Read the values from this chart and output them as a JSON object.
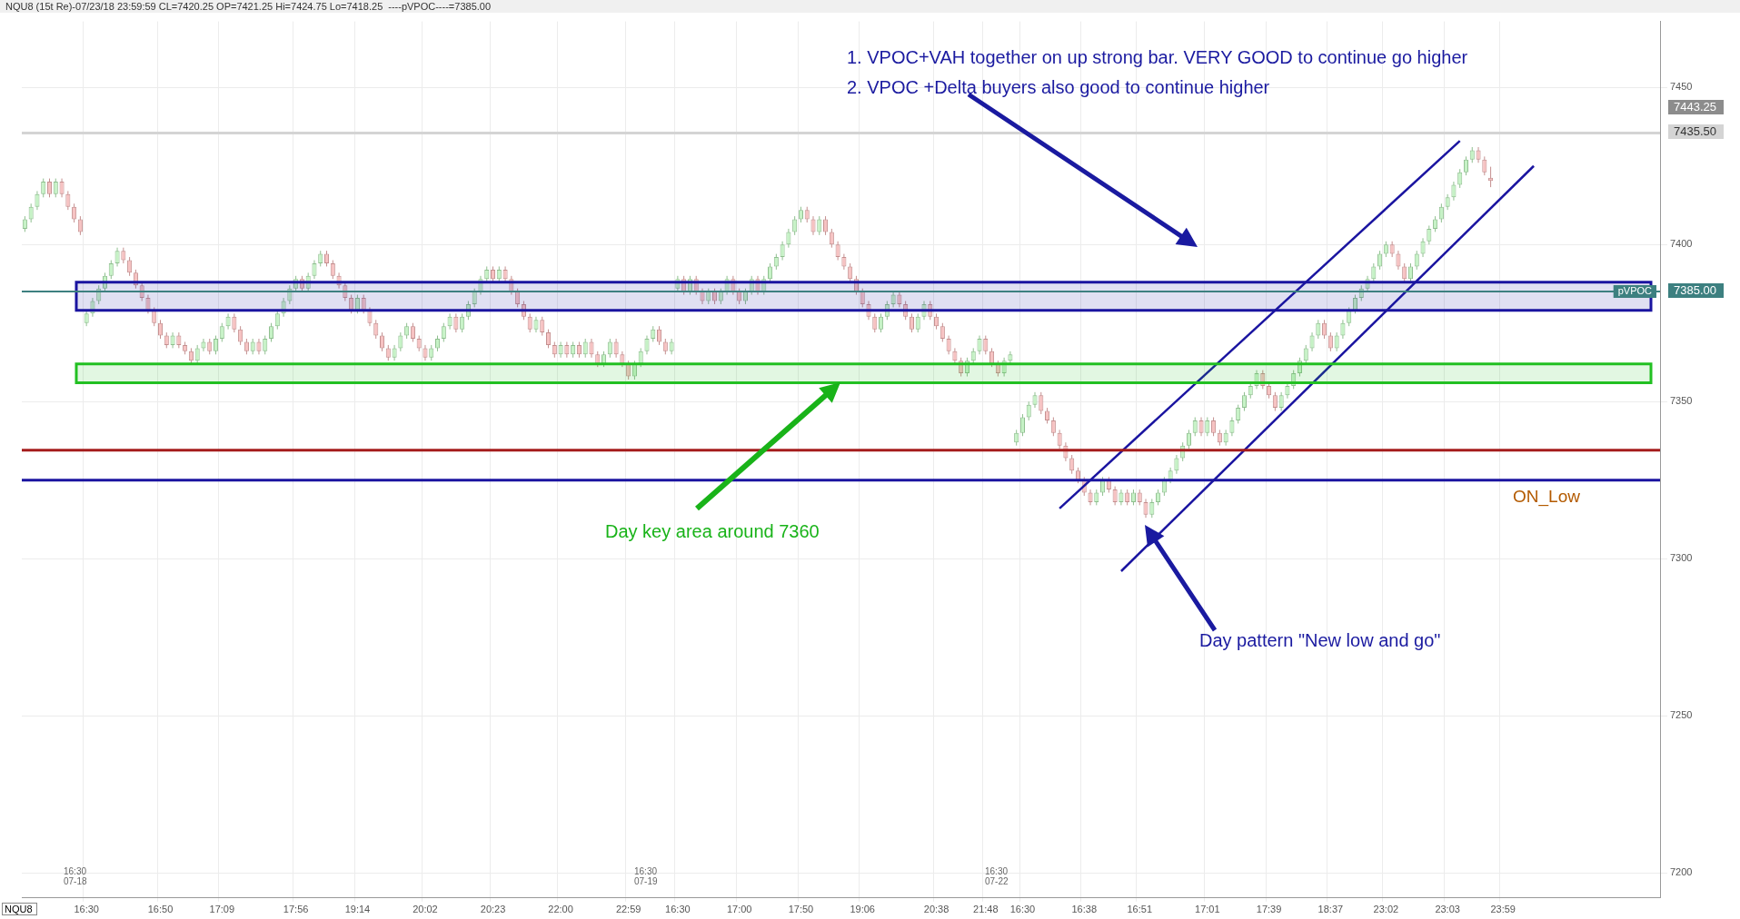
{
  "chart_data": {
    "type": "candlestick",
    "title": "NQU8 (15t Re)-07/23/18 23:59:59 CL=7420.25 OP=7421.25 Hi=7424.75 Lo=7418.25",
    "subtitle": "----pVPOC----=7385.00",
    "categories": [
      null,
      null,
      null,
      null,
      null,
      null,
      null,
      null,
      null,
      null,
      "16:30",
      null,
      null,
      null,
      null,
      null,
      null,
      null,
      null,
      null,
      null,
      null,
      "16:50",
      null,
      null,
      null,
      null,
      null,
      null,
      null,
      null,
      null,
      "17:09",
      null,
      null,
      null,
      null,
      null,
      null,
      null,
      null,
      null,
      null,
      null,
      "17:56",
      null,
      null,
      null,
      null,
      null,
      null,
      null,
      null,
      null,
      "19:14",
      null,
      null,
      null,
      null,
      null,
      null,
      null,
      null,
      null,
      null,
      "20:02",
      null,
      null,
      null,
      null,
      null,
      null,
      null,
      null,
      null,
      null,
      "20:23",
      null,
      null,
      null,
      null,
      null,
      null,
      null,
      null,
      null,
      null,
      "22:00",
      null,
      null,
      null,
      null,
      null,
      null,
      null,
      null,
      null,
      null,
      "22:59",
      null,
      null,
      null,
      null,
      null,
      null,
      null,
      "16:30",
      null,
      null,
      null,
      null,
      null,
      null,
      null,
      null,
      null,
      "17:00",
      null,
      null,
      null,
      null,
      null,
      null,
      null,
      null,
      null,
      "17:50",
      null,
      null,
      null,
      null,
      null,
      null,
      null,
      null,
      null,
      "19:06",
      null,
      null,
      null,
      null,
      null,
      null,
      null,
      null,
      null,
      null,
      null,
      "20:38",
      null,
      null,
      null,
      null,
      null,
      null,
      null,
      "21:48",
      null,
      null,
      null,
      null,
      null,
      "16:30",
      null,
      null,
      null,
      null,
      null,
      null,
      null,
      null,
      null,
      "16:38",
      null,
      null,
      null,
      null,
      null,
      null,
      null,
      null,
      "16:51",
      null,
      null,
      null,
      null,
      null,
      null,
      null,
      null,
      null,
      null,
      "17:01",
      null,
      null,
      null,
      null,
      null,
      null,
      null,
      null,
      null,
      "17:39",
      null,
      null,
      null,
      null,
      null,
      null,
      null,
      null,
      null,
      "18:37",
      null,
      null,
      null,
      null,
      null,
      null,
      null,
      null,
      "23:02",
      null,
      null,
      null,
      null,
      null,
      null,
      null,
      null,
      null,
      "23:03",
      null,
      null,
      null,
      null,
      null,
      null,
      null,
      null,
      "23:59",
      null,
      null,
      null,
      null,
      null,
      null,
      null,
      null,
      null,
      null,
      null,
      null,
      null,
      null,
      null,
      null,
      null,
      null,
      null,
      null,
      null,
      null,
      null,
      null,
      null
    ],
    "ohlc": [
      [
        7405,
        7409,
        7404,
        7408
      ],
      [
        7408,
        7413,
        7407,
        7412
      ],
      [
        7412,
        7417,
        7411,
        7416
      ],
      [
        7416,
        7421,
        7415,
        7420
      ],
      [
        7420,
        7421,
        7415,
        7416
      ],
      [
        7416,
        7421,
        7415,
        7420
      ],
      [
        7420,
        7421,
        7415,
        7416
      ],
      [
        7416,
        7417,
        7411,
        7412
      ],
      [
        7412,
        7413,
        7407,
        7408
      ],
      [
        7408,
        7409,
        7403,
        7404
      ],
      [
        7375,
        7379,
        7374,
        7378
      ],
      [
        7378,
        7383,
        7377,
        7382
      ],
      [
        7382,
        7387,
        7381,
        7386
      ],
      [
        7386,
        7391,
        7385,
        7390
      ],
      [
        7390,
        7395,
        7389,
        7394
      ],
      [
        7394,
        7399,
        7393,
        7398
      ],
      [
        7398,
        7399,
        7394,
        7395
      ],
      [
        7395,
        7396,
        7390,
        7391
      ],
      [
        7391,
        7392,
        7386,
        7387
      ],
      [
        7387,
        7388,
        7382,
        7383
      ],
      [
        7383,
        7384,
        7378,
        7379
      ],
      [
        7379,
        7380,
        7374,
        7375
      ],
      [
        7375,
        7376,
        7370,
        7371
      ],
      [
        7371,
        7372,
        7367,
        7368
      ],
      [
        7368,
        7372,
        7367,
        7371
      ],
      [
        7371,
        7372,
        7367,
        7368
      ],
      [
        7368,
        7369,
        7365,
        7366
      ],
      [
        7366,
        7367,
        7362,
        7363
      ],
      [
        7363,
        7368,
        7362,
        7367
      ],
      [
        7367,
        7370,
        7366,
        7369
      ],
      [
        7369,
        7370,
        7365,
        7366
      ],
      [
        7366,
        7371,
        7365,
        7370
      ],
      [
        7370,
        7375,
        7369,
        7374
      ],
      [
        7374,
        7378,
        7373,
        7377
      ],
      [
        7377,
        7378,
        7372,
        7373
      ],
      [
        7373,
        7374,
        7368,
        7369
      ],
      [
        7369,
        7370,
        7365,
        7366
      ],
      [
        7366,
        7370,
        7365,
        7369
      ],
      [
        7369,
        7370,
        7365,
        7366
      ],
      [
        7366,
        7371,
        7365,
        7370
      ],
      [
        7370,
        7375,
        7369,
        7374
      ],
      [
        7374,
        7379,
        7373,
        7378
      ],
      [
        7378,
        7383,
        7377,
        7382
      ],
      [
        7382,
        7387,
        7381,
        7386
      ],
      [
        7386,
        7390,
        7385,
        7389
      ],
      [
        7389,
        7390,
        7385,
        7386
      ],
      [
        7386,
        7391,
        7385,
        7390
      ],
      [
        7390,
        7395,
        7389,
        7394
      ],
      [
        7394,
        7398,
        7393,
        7397
      ],
      [
        7397,
        7398,
        7393,
        7394
      ],
      [
        7394,
        7395,
        7389,
        7390
      ],
      [
        7390,
        7391,
        7386,
        7387
      ],
      [
        7387,
        7388,
        7382,
        7383
      ],
      [
        7383,
        7384,
        7378,
        7379
      ],
      [
        7379,
        7384,
        7378,
        7383
      ],
      [
        7383,
        7384,
        7378,
        7379
      ],
      [
        7379,
        7380,
        7374,
        7375
      ],
      [
        7375,
        7376,
        7370,
        7371
      ],
      [
        7371,
        7372,
        7366,
        7367
      ],
      [
        7367,
        7368,
        7363,
        7364
      ],
      [
        7364,
        7368,
        7363,
        7367
      ],
      [
        7367,
        7372,
        7366,
        7371
      ],
      [
        7371,
        7375,
        7370,
        7374
      ],
      [
        7374,
        7375,
        7369,
        7370
      ],
      [
        7370,
        7371,
        7366,
        7367
      ],
      [
        7367,
        7368,
        7363,
        7364
      ],
      [
        7364,
        7368,
        7363,
        7367
      ],
      [
        7367,
        7371,
        7366,
        7370
      ],
      [
        7370,
        7375,
        7369,
        7374
      ],
      [
        7374,
        7378,
        7373,
        7377
      ],
      [
        7377,
        7378,
        7372,
        7373
      ],
      [
        7373,
        7378,
        7372,
        7377
      ],
      [
        7377,
        7382,
        7376,
        7381
      ],
      [
        7381,
        7386,
        7380,
        7385
      ],
      [
        7385,
        7390,
        7384,
        7389
      ],
      [
        7389,
        7393,
        7388,
        7392
      ],
      [
        7392,
        7393,
        7388,
        7389
      ],
      [
        7389,
        7393,
        7388,
        7392
      ],
      [
        7392,
        7393,
        7388,
        7389
      ],
      [
        7389,
        7390,
        7384,
        7385
      ],
      [
        7385,
        7386,
        7380,
        7381
      ],
      [
        7381,
        7382,
        7376,
        7377
      ],
      [
        7377,
        7378,
        7372,
        7373
      ],
      [
        7373,
        7377,
        7372,
        7376
      ],
      [
        7376,
        7377,
        7371,
        7372
      ],
      [
        7372,
        7373,
        7367,
        7368
      ],
      [
        7368,
        7369,
        7364,
        7365
      ],
      [
        7365,
        7369,
        7364,
        7368
      ],
      [
        7368,
        7369,
        7364,
        7365
      ],
      [
        7365,
        7369,
        7364,
        7368
      ],
      [
        7368,
        7369,
        7364,
        7365
      ],
      [
        7365,
        7370,
        7364,
        7369
      ],
      [
        7369,
        7370,
        7364,
        7365
      ],
      [
        7365,
        7366,
        7361,
        7362
      ],
      [
        7362,
        7366,
        7361,
        7365
      ],
      [
        7365,
        7370,
        7364,
        7369
      ],
      [
        7369,
        7370,
        7364,
        7365
      ],
      [
        7365,
        7366,
        7361,
        7362
      ],
      [
        7362,
        7363,
        7357,
        7358
      ],
      [
        7358,
        7363,
        7357,
        7362
      ],
      [
        7362,
        7367,
        7361,
        7366
      ],
      [
        7366,
        7371,
        7365,
        7370
      ],
      [
        7370,
        7374,
        7369,
        7373
      ],
      [
        7373,
        7374,
        7368,
        7369
      ],
      [
        7369,
        7370,
        7365,
        7366
      ],
      [
        7366,
        7370,
        7365,
        7369
      ],
      [
        7386,
        7390,
        7385,
        7389
      ],
      [
        7389,
        7390,
        7384,
        7385
      ],
      [
        7385,
        7390,
        7384,
        7389
      ],
      [
        7389,
        7390,
        7384,
        7385
      ],
      [
        7385,
        7386,
        7381,
        7382
      ],
      [
        7382,
        7386,
        7381,
        7385
      ],
      [
        7385,
        7386,
        7381,
        7382
      ],
      [
        7382,
        7386,
        7381,
        7385
      ],
      [
        7385,
        7390,
        7384,
        7389
      ],
      [
        7389,
        7390,
        7384,
        7385
      ],
      [
        7385,
        7386,
        7381,
        7382
      ],
      [
        7382,
        7386,
        7381,
        7385
      ],
      [
        7385,
        7390,
        7384,
        7389
      ],
      [
        7389,
        7390,
        7384,
        7385
      ],
      [
        7385,
        7390,
        7384,
        7389
      ],
      [
        7389,
        7394,
        7388,
        7393
      ],
      [
        7393,
        7397,
        7392,
        7396
      ],
      [
        7396,
        7401,
        7395,
        7400
      ],
      [
        7400,
        7405,
        7399,
        7404
      ],
      [
        7404,
        7409,
        7403,
        7408
      ],
      [
        7408,
        7412,
        7407,
        7411
      ],
      [
        7411,
        7412,
        7407,
        7408
      ],
      [
        7408,
        7409,
        7403,
        7404
      ],
      [
        7404,
        7409,
        7403,
        7408
      ],
      [
        7408,
        7409,
        7403,
        7404
      ],
      [
        7404,
        7405,
        7399,
        7400
      ],
      [
        7400,
        7401,
        7395,
        7396
      ],
      [
        7396,
        7397,
        7392,
        7393
      ],
      [
        7393,
        7394,
        7388,
        7389
      ],
      [
        7389,
        7390,
        7384,
        7385
      ],
      [
        7385,
        7386,
        7380,
        7381
      ],
      [
        7381,
        7382,
        7376,
        7377
      ],
      [
        7377,
        7378,
        7372,
        7373
      ],
      [
        7373,
        7378,
        7372,
        7377
      ],
      [
        7377,
        7382,
        7376,
        7381
      ],
      [
        7381,
        7385,
        7380,
        7384
      ],
      [
        7384,
        7385,
        7380,
        7381
      ],
      [
        7381,
        7382,
        7376,
        7377
      ],
      [
        7377,
        7378,
        7372,
        7373
      ],
      [
        7373,
        7378,
        7372,
        7377
      ],
      [
        7377,
        7382,
        7376,
        7381
      ],
      [
        7381,
        7382,
        7376,
        7377
      ],
      [
        7377,
        7378,
        7373,
        7374
      ],
      [
        7374,
        7375,
        7369,
        7370
      ],
      [
        7370,
        7371,
        7365,
        7366
      ],
      [
        7366,
        7367,
        7362,
        7363
      ],
      [
        7363,
        7364,
        7358,
        7359
      ],
      [
        7359,
        7364,
        7358,
        7363
      ],
      [
        7363,
        7367,
        7362,
        7366
      ],
      [
        7366,
        7371,
        7365,
        7370
      ],
      [
        7370,
        7371,
        7365,
        7366
      ],
      [
        7366,
        7367,
        7361,
        7362
      ],
      [
        7362,
        7363,
        7358,
        7359
      ],
      [
        7359,
        7364,
        7358,
        7363
      ],
      [
        7363,
        7366,
        7362,
        7365
      ],
      [
        7337,
        7341,
        7336,
        7340
      ],
      [
        7340,
        7346,
        7339,
        7345
      ],
      [
        7345,
        7350,
        7344,
        7349
      ],
      [
        7349,
        7353,
        7348,
        7352
      ],
      [
        7352,
        7353,
        7346,
        7347
      ],
      [
        7347,
        7348,
        7343,
        7344
      ],
      [
        7344,
        7345,
        7339,
        7340
      ],
      [
        7340,
        7341,
        7335,
        7336
      ],
      [
        7336,
        7337,
        7331,
        7332
      ],
      [
        7332,
        7333,
        7327,
        7328
      ],
      [
        7328,
        7329,
        7324,
        7325
      ],
      [
        7325,
        7326,
        7320,
        7321
      ],
      [
        7321,
        7322,
        7317,
        7318
      ],
      [
        7318,
        7322,
        7317,
        7321
      ],
      [
        7321,
        7326,
        7320,
        7325
      ],
      [
        7325,
        7326,
        7321,
        7322
      ],
      [
        7322,
        7323,
        7317,
        7318
      ],
      [
        7318,
        7322,
        7317,
        7321
      ],
      [
        7321,
        7322,
        7317,
        7318
      ],
      [
        7318,
        7322,
        7317,
        7321
      ],
      [
        7321,
        7322,
        7317,
        7318
      ],
      [
        7318,
        7319,
        7313,
        7314
      ],
      [
        7314,
        7319,
        7313,
        7318
      ],
      [
        7318,
        7322,
        7317,
        7321
      ],
      [
        7321,
        7326,
        7320,
        7325
      ],
      [
        7325,
        7329,
        7324,
        7328
      ],
      [
        7328,
        7333,
        7327,
        7332
      ],
      [
        7332,
        7337,
        7331,
        7336
      ],
      [
        7336,
        7341,
        7335,
        7340
      ],
      [
        7340,
        7345,
        7339,
        7344
      ],
      [
        7344,
        7345,
        7339,
        7340
      ],
      [
        7340,
        7345,
        7339,
        7344
      ],
      [
        7344,
        7345,
        7339,
        7340
      ],
      [
        7340,
        7341,
        7336,
        7337
      ],
      [
        7337,
        7341,
        7336,
        7340
      ],
      [
        7340,
        7345,
        7339,
        7344
      ],
      [
        7344,
        7349,
        7343,
        7348
      ],
      [
        7348,
        7353,
        7347,
        7352
      ],
      [
        7352,
        7356,
        7351,
        7355
      ],
      [
        7355,
        7360,
        7354,
        7359
      ],
      [
        7359,
        7360,
        7354,
        7355
      ],
      [
        7355,
        7356,
        7351,
        7352
      ],
      [
        7352,
        7353,
        7347,
        7348
      ],
      [
        7348,
        7353,
        7347,
        7352
      ],
      [
        7352,
        7356,
        7351,
        7355
      ],
      [
        7355,
        7360,
        7354,
        7359
      ],
      [
        7359,
        7364,
        7358,
        7363
      ],
      [
        7363,
        7368,
        7362,
        7367
      ],
      [
        7367,
        7372,
        7366,
        7371
      ],
      [
        7371,
        7376,
        7370,
        7375
      ],
      [
        7375,
        7376,
        7370,
        7371
      ],
      [
        7371,
        7372,
        7366,
        7367
      ],
      [
        7367,
        7372,
        7366,
        7371
      ],
      [
        7371,
        7376,
        7370,
        7375
      ],
      [
        7375,
        7380,
        7374,
        7379
      ],
      [
        7379,
        7384,
        7378,
        7383
      ],
      [
        7383,
        7387,
        7382,
        7386
      ],
      [
        7386,
        7390,
        7385,
        7389
      ],
      [
        7389,
        7394,
        7388,
        7393
      ],
      [
        7393,
        7398,
        7392,
        7397
      ],
      [
        7397,
        7401,
        7396,
        7400
      ],
      [
        7400,
        7401,
        7396,
        7397
      ],
      [
        7397,
        7398,
        7392,
        7393
      ],
      [
        7393,
        7394,
        7388,
        7389
      ],
      [
        7389,
        7394,
        7388,
        7393
      ],
      [
        7393,
        7398,
        7392,
        7397
      ],
      [
        7397,
        7402,
        7396,
        7401
      ],
      [
        7401,
        7406,
        7400,
        7405
      ],
      [
        7405,
        7409,
        7404,
        7408
      ],
      [
        7408,
        7413,
        7407,
        7412
      ],
      [
        7412,
        7416,
        7411,
        7415
      ],
      [
        7415,
        7420,
        7414,
        7419
      ],
      [
        7419,
        7424,
        7418,
        7423
      ],
      [
        7423,
        7428,
        7422,
        7427
      ],
      [
        7427,
        7431,
        7426,
        7430
      ],
      [
        7430,
        7431,
        7426,
        7427
      ],
      [
        7427,
        7428,
        7422,
        7423
      ],
      [
        7421.25,
        7424.75,
        7418.25,
        7420.25
      ],
      null,
      null,
      null,
      null,
      null,
      null,
      null,
      null,
      null,
      null,
      null,
      null,
      null,
      null,
      null,
      null,
      null,
      null,
      null,
      null,
      null,
      null,
      null,
      null,
      null,
      null,
      null
    ],
    "series": [
      {
        "type": "line",
        "color": "#1a14a0",
        "values": [
          null,
          null,
          null,
          null,
          null,
          null,
          null,
          null,
          null,
          null,
          null,
          null,
          null,
          null,
          null,
          null,
          null,
          null,
          null,
          null,
          null,
          null,
          null,
          null,
          null,
          null,
          null,
          null,
          null,
          null,
          null,
          null,
          null,
          null,
          null,
          null,
          null,
          null,
          null,
          null,
          null,
          null,
          null,
          null,
          null,
          null,
          null,
          null,
          null,
          null,
          null,
          null,
          null,
          null,
          null,
          null,
          null,
          null,
          null,
          null,
          null,
          null,
          null,
          null,
          null,
          null,
          null,
          null,
          null,
          null,
          null,
          null,
          null,
          null,
          null,
          null,
          null,
          null,
          null,
          null,
          null,
          null,
          null,
          null,
          null,
          null,
          null,
          null,
          null,
          null,
          null,
          null,
          null,
          null,
          null,
          null,
          null,
          null,
          null,
          null,
          null,
          null,
          null,
          null,
          null,
          null,
          null,
          null,
          null,
          null,
          null,
          null,
          null,
          null,
          null,
          null,
          null,
          null,
          null,
          null,
          null,
          null,
          null,
          null,
          null,
          null,
          null,
          null,
          null,
          null,
          null,
          null,
          null,
          null,
          null,
          null,
          null,
          null,
          null,
          null,
          null,
          null,
          null,
          null,
          null,
          null,
          null,
          null,
          null,
          null,
          null,
          null,
          null,
          null,
          null,
          null,
          null,
          null,
          null,
          null,
          null,
          null,
          null,
          null,
          null,
          null,
          null,
          null,
          7316,
          null,
          null,
          null,
          null,
          null,
          null,
          null,
          null,
          null,
          null,
          null,
          null,
          null,
          null,
          null,
          null,
          null,
          null,
          null,
          null,
          null,
          null,
          null,
          null,
          null,
          null,
          null,
          null,
          null,
          null,
          null,
          null,
          null,
          null,
          null,
          null,
          null,
          null,
          null,
          null,
          null,
          null,
          null,
          null,
          null,
          null,
          null,
          null,
          null,
          null,
          null,
          null,
          null,
          null,
          null,
          null,
          null,
          null,
          null,
          null,
          null,
          null,
          null,
          null,
          7433,
          null,
          null,
          null,
          null,
          null,
          null,
          null,
          null,
          null,
          null,
          null,
          null,
          null,
          null,
          null,
          null,
          null,
          null,
          null,
          null,
          null,
          null,
          null,
          null,
          null,
          null,
          null,
          null,
          null,
          null,
          null,
          null
        ]
      },
      {
        "type": "line",
        "color": "#1a14a0",
        "values": [
          null,
          null,
          null,
          null,
          null,
          null,
          null,
          null,
          null,
          null,
          null,
          null,
          null,
          null,
          null,
          null,
          null,
          null,
          null,
          null,
          null,
          null,
          null,
          null,
          null,
          null,
          null,
          null,
          null,
          null,
          null,
          null,
          null,
          null,
          null,
          null,
          null,
          null,
          null,
          null,
          null,
          null,
          null,
          null,
          null,
          null,
          null,
          null,
          null,
          null,
          null,
          null,
          null,
          null,
          null,
          null,
          null,
          null,
          null,
          null,
          null,
          null,
          null,
          null,
          null,
          null,
          null,
          null,
          null,
          null,
          null,
          null,
          null,
          null,
          null,
          null,
          null,
          null,
          null,
          null,
          null,
          null,
          null,
          null,
          null,
          null,
          null,
          null,
          null,
          null,
          null,
          null,
          null,
          null,
          null,
          null,
          null,
          null,
          null,
          null,
          null,
          null,
          null,
          null,
          null,
          null,
          null,
          null,
          null,
          null,
          null,
          null,
          null,
          null,
          null,
          null,
          null,
          null,
          null,
          null,
          null,
          null,
          null,
          null,
          null,
          null,
          null,
          null,
          null,
          null,
          null,
          null,
          null,
          null,
          null,
          null,
          null,
          null,
          null,
          null,
          null,
          null,
          null,
          null,
          null,
          null,
          null,
          null,
          null,
          null,
          null,
          null,
          null,
          null,
          null,
          null,
          null,
          null,
          null,
          null,
          null,
          null,
          null,
          null,
          null,
          null,
          null,
          null,
          null,
          null,
          null,
          null,
          null,
          null,
          null,
          null,
          null,
          null,
          7296,
          null,
          null,
          null,
          null,
          null,
          null,
          null,
          null,
          null,
          null,
          null,
          null,
          null,
          null,
          null,
          null,
          null,
          null,
          null,
          null,
          null,
          null,
          null,
          null,
          null,
          null,
          null,
          null,
          null,
          null,
          null,
          null,
          null,
          null,
          null,
          null,
          null,
          null,
          null,
          null,
          null,
          null,
          null,
          null,
          null,
          null,
          null,
          null,
          null,
          null,
          null,
          null,
          null,
          null,
          null,
          null,
          null,
          null,
          null,
          null,
          null,
          null,
          null,
          null,
          null,
          null,
          7425,
          null,
          null,
          null,
          null,
          null,
          null,
          null,
          null,
          null,
          null,
          null,
          null,
          null,
          null,
          null,
          null,
          null,
          null,
          null,
          null
        ]
      }
    ],
    "ylim": [
      7192,
      7471
    ],
    "yticks": [
      7200,
      7250,
      7300,
      7350,
      7400,
      7450
    ],
    "grid": true,
    "legend": false,
    "ref_lines": [
      {
        "axis": "y",
        "value": 7435.5,
        "color": "#d4d4d4"
      },
      {
        "axis": "y",
        "value": 7385,
        "label": "pVPOC",
        "color": "#3d8080"
      },
      {
        "axis": "y",
        "value": 7334.5,
        "color": "#a51d1d"
      },
      {
        "axis": "y",
        "value": 7325,
        "color": "#1a14a0"
      }
    ],
    "bands": [
      {
        "axis": "y",
        "from": 7356,
        "to": 7362,
        "color": "#22c022"
      },
      {
        "axis": "y",
        "from": 7379,
        "to": 7388,
        "color": "#1a14a0"
      }
    ],
    "annotations": [
      "1. VPOC+VAH together on up strong bar. VERY GOOD to continue go higher",
      "2. VPOC +Delta buyers also good to continue higher",
      "Day key area around 7360",
      "Day pattern \"New low and go\"",
      "16:30\n07-18",
      "16:30\n07-19",
      "16:30\n07-22",
      "NQU8",
      "ON_Low",
      "7443.25",
      "7435.50",
      "7385.00"
    ]
  }
}
